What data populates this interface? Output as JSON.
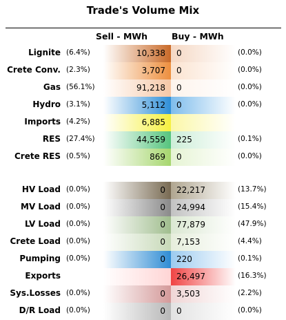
{
  "title": "Trade's Volume Mix",
  "headers": {
    "sell": "Sell - MWh",
    "buy": "Buy - MWh"
  },
  "sell_rows": [
    {
      "label": "Lignite",
      "sell_pct": "(6.4%)",
      "sell_val": "10,338",
      "buy_val": "0",
      "buy_pct": "(0.0%)",
      "sell_color": "#c96a28",
      "buy_color": "#f5d8c4"
    },
    {
      "label": "Crete Conv.",
      "sell_pct": "(2.3%)",
      "sell_val": "3,707",
      "buy_val": "0",
      "buy_pct": "(0.0%)",
      "sell_color": "#ed8f3e",
      "buy_color": "#fbe3d0"
    },
    {
      "label": "Gas",
      "sell_pct": "(56.1%)",
      "sell_val": "91,218",
      "buy_val": "0",
      "buy_pct": "(0.0%)",
      "sell_color": "#f6c7a6",
      "buy_color": "#fdf3ec"
    },
    {
      "label": "Hydro",
      "sell_pct": "(3.1%)",
      "sell_val": "5,112",
      "buy_val": "0",
      "buy_pct": "(0.0%)",
      "sell_color": "#2f8fd8",
      "buy_color": "#7fbdec"
    },
    {
      "label": "Imports",
      "sell_pct": "(4.2%)",
      "sell_val": "6,885",
      "buy_val": "",
      "buy_pct": "",
      "sell_color": "#f5f040",
      "buy_color": "#fbf7a8"
    },
    {
      "label": "RES",
      "sell_pct": "(27.4%)",
      "sell_val": "44,559",
      "buy_val": "225",
      "buy_pct": "(0.1%)",
      "sell_color": "#56c47e",
      "buy_color": "#cdeed8"
    },
    {
      "label": "Crete RES",
      "sell_pct": "(0.5%)",
      "sell_val": "869",
      "buy_val": "0",
      "buy_pct": "(0.0%)",
      "sell_color": "#a6d66e",
      "buy_color": "#e6f4d4"
    }
  ],
  "buy_rows": [
    {
      "label": "HV Load",
      "sell_pct": "(0.0%)",
      "sell_val": "0",
      "buy_val": "22,217",
      "buy_pct": "(13.7%)",
      "sell_color": "#786a52",
      "buy_color": "#b0a690"
    },
    {
      "label": "MV Load",
      "sell_pct": "(0.0%)",
      "sell_val": "0",
      "buy_val": "24,994",
      "buy_pct": "(15.4%)",
      "sell_color": "#8a8a8a",
      "buy_color": "#c2c2c2"
    },
    {
      "label": "LV Load",
      "sell_pct": "(0.0%)",
      "sell_val": "0",
      "buy_val": "77,879",
      "buy_pct": "(47.9%)",
      "sell_color": "#a0bd8e",
      "buy_color": "#dbe8d2"
    },
    {
      "label": "Crete Load",
      "sell_pct": "(0.0%)",
      "sell_val": "0",
      "buy_val": "7,153",
      "buy_pct": "(4.4%)",
      "sell_color": "#c7d9b8",
      "buy_color": "#e6eedc"
    },
    {
      "label": "Pumping",
      "sell_pct": "(0.0%)",
      "sell_val": "0",
      "buy_val": "220",
      "buy_pct": "(0.1%)",
      "sell_color": "#2e8cd4",
      "buy_color": "#9ccbf0"
    },
    {
      "label": "Exports",
      "sell_pct": "",
      "sell_val": "",
      "buy_val": "26,497",
      "buy_pct": "(16.3%)",
      "sell_color": "#ffd5d5",
      "buy_color": "#f04444"
    },
    {
      "label": "Sys.Losses",
      "sell_pct": "(0.0%)",
      "sell_val": "0",
      "buy_val": "3,503",
      "buy_pct": "(2.2%)",
      "sell_color": "#d49a9a",
      "buy_color": "#f0d6d6"
    },
    {
      "label": "D/R Load",
      "sell_pct": "(0.0%)",
      "sell_val": "0",
      "buy_val": "0",
      "buy_pct": "(0.0%)",
      "sell_color": "#b8b8b8",
      "buy_color": "#e2e2e2"
    }
  ]
}
